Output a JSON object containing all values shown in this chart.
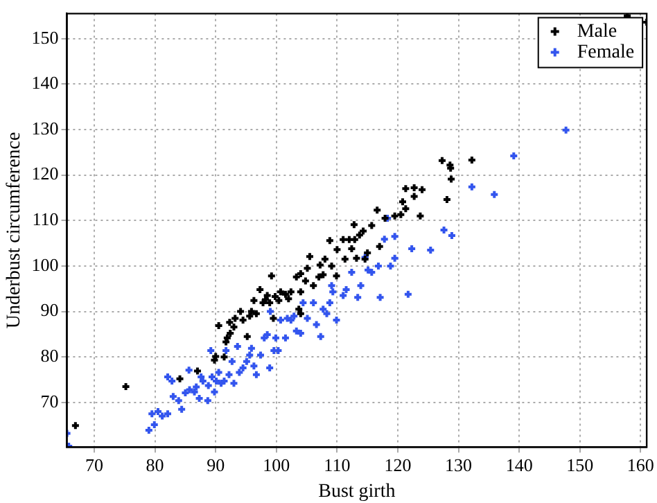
{
  "chart_data": {
    "type": "scatter",
    "xlabel": "Bust girth",
    "ylabel": "Underbust circumference",
    "xlim": [
      65.5,
      161
    ],
    "ylim": [
      60.2,
      155.5
    ],
    "xticks": [
      70,
      80,
      90,
      100,
      110,
      120,
      130,
      140,
      150,
      160
    ],
    "yticks": [
      70,
      80,
      90,
      100,
      110,
      120,
      130,
      140,
      150
    ],
    "grid": true,
    "legend": "top right",
    "marker": "cross",
    "series": [
      {
        "name": "Male",
        "color": "#000000",
        "x": [
          66.9,
          75.2,
          84.1,
          87.0,
          89.8,
          90.0,
          91.4,
          91.7,
          91.9,
          92.4,
          93.0,
          90.5,
          92.3,
          93.2,
          94.1,
          94.5,
          95.2,
          95.6,
          95.9,
          96.3,
          96.7,
          97.3,
          97.8,
          98.2,
          98.5,
          98.9,
          99.2,
          99.5,
          99.8,
          100.4,
          100.7,
          101.5,
          102.0,
          102.4,
          103.7,
          104.0,
          104.0,
          103.3,
          104.0,
          104.8,
          105.1,
          105.5,
          106.1,
          107.0,
          107.2,
          107.7,
          108.0,
          108.8,
          109.1,
          109.9,
          110.0,
          111.0,
          111.3,
          112.0,
          112.4,
          112.8,
          112.9,
          113.2,
          113.7,
          114.3,
          114.6,
          115.0,
          115.7,
          116.6,
          117.0,
          117.9,
          119.5,
          120.5,
          120.8,
          121.3,
          121.3,
          122.7,
          122.7,
          124.0,
          123.7,
          128.1,
          127.3,
          128.6,
          128.7,
          128.8,
          132.2,
          157.8,
          161.0
        ],
        "values": [
          64.9,
          73.5,
          75.2,
          76.9,
          79.3,
          80.1,
          80.0,
          83.3,
          84.2,
          85.2,
          86.6,
          86.9,
          87.6,
          88.5,
          90.0,
          88.1,
          84.5,
          89.0,
          90.0,
          92.4,
          89.5,
          94.8,
          91.9,
          92.6,
          93.5,
          91.9,
          97.8,
          88.5,
          93.3,
          92.4,
          94.3,
          93.8,
          92.8,
          94.3,
          90.5,
          89.5,
          94.3,
          97.6,
          98.3,
          96.7,
          99.5,
          102.1,
          95.7,
          97.6,
          100.2,
          98.1,
          101.5,
          105.6,
          100.0,
          97.8,
          103.6,
          105.8,
          101.5,
          105.8,
          103.8,
          109.1,
          105.8,
          101.7,
          106.8,
          107.7,
          101.5,
          102.9,
          108.9,
          112.3,
          104.3,
          110.5,
          111.0,
          111.3,
          114.1,
          112.6,
          117.0,
          117.2,
          115.3,
          116.8,
          111.0,
          114.6,
          123.2,
          122.2,
          121.5,
          119.1,
          123.3,
          155.0,
          153.6
        ]
      },
      {
        "name": "Female",
        "color": "#3355ee",
        "x": [
          65.5,
          65.8,
          79.0,
          79.5,
          79.9,
          80.5,
          81.2,
          82.1,
          82.1,
          82.8,
          83.0,
          83.9,
          84.4,
          85.0,
          85.6,
          85.7,
          86.5,
          86.8,
          87.3,
          87.6,
          87.9,
          88.7,
          88.8,
          89.2,
          89.4,
          89.8,
          90.1,
          90.5,
          90.9,
          91.4,
          91.7,
          92.2,
          92.7,
          93.0,
          93.6,
          93.9,
          94.5,
          95.1,
          95.6,
          95.9,
          96.3,
          96.7,
          97.4,
          98.0,
          98.5,
          98.9,
          99.0,
          99.6,
          99.9,
          100.3,
          100.7,
          101.5,
          101.8,
          102.4,
          102.9,
          103.3,
          104.0,
          104.4,
          105.1,
          106.1,
          106.6,
          107.3,
          107.7,
          108.3,
          108.8,
          109.1,
          109.3,
          109.9,
          111.0,
          111.5,
          112.4,
          113.4,
          113.9,
          114.6,
          115.1,
          115.7,
          116.8,
          117.1,
          117.8,
          118.3,
          118.8,
          119.5,
          119.5,
          121.7,
          122.3,
          125.4,
          127.6,
          128.9,
          132.2,
          135.9,
          139.1,
          147.7
        ],
        "values": [
          63.2,
          60.4,
          63.9,
          67.5,
          65.1,
          68.0,
          67.0,
          67.5,
          75.6,
          74.7,
          71.3,
          70.4,
          68.5,
          72.1,
          77.1,
          72.8,
          72.3,
          73.4,
          70.9,
          75.6,
          74.7,
          70.4,
          73.7,
          81.4,
          75.6,
          72.3,
          74.7,
          76.6,
          74.2,
          74.7,
          81.4,
          76.1,
          79.0,
          74.2,
          82.3,
          76.6,
          77.6,
          79.0,
          80.4,
          81.9,
          78.0,
          76.1,
          80.4,
          84.2,
          84.9,
          77.6,
          90.0,
          81.4,
          84.2,
          81.4,
          88.1,
          84.2,
          88.5,
          88.1,
          89.0,
          85.7,
          85.2,
          91.9,
          88.5,
          91.9,
          87.1,
          84.5,
          90.5,
          89.5,
          91.9,
          95.7,
          94.3,
          88.1,
          93.5,
          94.8,
          98.6,
          93.1,
          95.7,
          101.9,
          99.1,
          98.6,
          100.0,
          93.1,
          105.9,
          110.5,
          100.0,
          106.5,
          101.7,
          93.8,
          103.8,
          103.5,
          107.9,
          106.7,
          117.4,
          115.7,
          124.2,
          129.9
        ]
      }
    ]
  }
}
